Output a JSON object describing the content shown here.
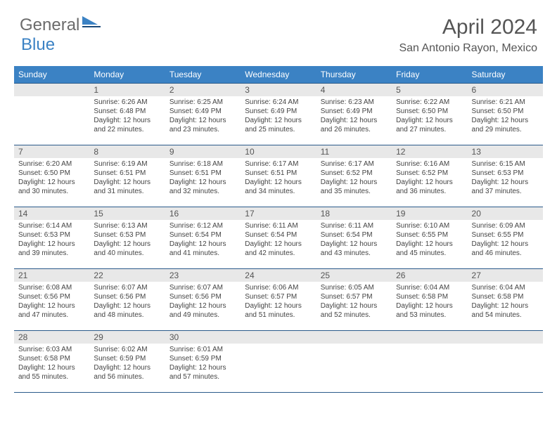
{
  "logo": {
    "part1": "General",
    "part2": "Blue"
  },
  "title": "April 2024",
  "location": "San Antonio Rayon, Mexico",
  "colors": {
    "header_bg": "#3b82c4",
    "row_border": "#2a5a8a",
    "daynum_bg": "#e8e8e8",
    "logo_gray": "#6b6b6b",
    "logo_blue": "#3b82c4"
  },
  "day_labels": [
    "Sunday",
    "Monday",
    "Tuesday",
    "Wednesday",
    "Thursday",
    "Friday",
    "Saturday"
  ],
  "weeks": [
    [
      null,
      {
        "n": "1",
        "sr": "Sunrise: 6:26 AM",
        "ss": "Sunset: 6:48 PM",
        "dl": "Daylight: 12 hours and 22 minutes."
      },
      {
        "n": "2",
        "sr": "Sunrise: 6:25 AM",
        "ss": "Sunset: 6:49 PM",
        "dl": "Daylight: 12 hours and 23 minutes."
      },
      {
        "n": "3",
        "sr": "Sunrise: 6:24 AM",
        "ss": "Sunset: 6:49 PM",
        "dl": "Daylight: 12 hours and 25 minutes."
      },
      {
        "n": "4",
        "sr": "Sunrise: 6:23 AM",
        "ss": "Sunset: 6:49 PM",
        "dl": "Daylight: 12 hours and 26 minutes."
      },
      {
        "n": "5",
        "sr": "Sunrise: 6:22 AM",
        "ss": "Sunset: 6:50 PM",
        "dl": "Daylight: 12 hours and 27 minutes."
      },
      {
        "n": "6",
        "sr": "Sunrise: 6:21 AM",
        "ss": "Sunset: 6:50 PM",
        "dl": "Daylight: 12 hours and 29 minutes."
      }
    ],
    [
      {
        "n": "7",
        "sr": "Sunrise: 6:20 AM",
        "ss": "Sunset: 6:50 PM",
        "dl": "Daylight: 12 hours and 30 minutes."
      },
      {
        "n": "8",
        "sr": "Sunrise: 6:19 AM",
        "ss": "Sunset: 6:51 PM",
        "dl": "Daylight: 12 hours and 31 minutes."
      },
      {
        "n": "9",
        "sr": "Sunrise: 6:18 AM",
        "ss": "Sunset: 6:51 PM",
        "dl": "Daylight: 12 hours and 32 minutes."
      },
      {
        "n": "10",
        "sr": "Sunrise: 6:17 AM",
        "ss": "Sunset: 6:51 PM",
        "dl": "Daylight: 12 hours and 34 minutes."
      },
      {
        "n": "11",
        "sr": "Sunrise: 6:17 AM",
        "ss": "Sunset: 6:52 PM",
        "dl": "Daylight: 12 hours and 35 minutes."
      },
      {
        "n": "12",
        "sr": "Sunrise: 6:16 AM",
        "ss": "Sunset: 6:52 PM",
        "dl": "Daylight: 12 hours and 36 minutes."
      },
      {
        "n": "13",
        "sr": "Sunrise: 6:15 AM",
        "ss": "Sunset: 6:53 PM",
        "dl": "Daylight: 12 hours and 37 minutes."
      }
    ],
    [
      {
        "n": "14",
        "sr": "Sunrise: 6:14 AM",
        "ss": "Sunset: 6:53 PM",
        "dl": "Daylight: 12 hours and 39 minutes."
      },
      {
        "n": "15",
        "sr": "Sunrise: 6:13 AM",
        "ss": "Sunset: 6:53 PM",
        "dl": "Daylight: 12 hours and 40 minutes."
      },
      {
        "n": "16",
        "sr": "Sunrise: 6:12 AM",
        "ss": "Sunset: 6:54 PM",
        "dl": "Daylight: 12 hours and 41 minutes."
      },
      {
        "n": "17",
        "sr": "Sunrise: 6:11 AM",
        "ss": "Sunset: 6:54 PM",
        "dl": "Daylight: 12 hours and 42 minutes."
      },
      {
        "n": "18",
        "sr": "Sunrise: 6:11 AM",
        "ss": "Sunset: 6:54 PM",
        "dl": "Daylight: 12 hours and 43 minutes."
      },
      {
        "n": "19",
        "sr": "Sunrise: 6:10 AM",
        "ss": "Sunset: 6:55 PM",
        "dl": "Daylight: 12 hours and 45 minutes."
      },
      {
        "n": "20",
        "sr": "Sunrise: 6:09 AM",
        "ss": "Sunset: 6:55 PM",
        "dl": "Daylight: 12 hours and 46 minutes."
      }
    ],
    [
      {
        "n": "21",
        "sr": "Sunrise: 6:08 AM",
        "ss": "Sunset: 6:56 PM",
        "dl": "Daylight: 12 hours and 47 minutes."
      },
      {
        "n": "22",
        "sr": "Sunrise: 6:07 AM",
        "ss": "Sunset: 6:56 PM",
        "dl": "Daylight: 12 hours and 48 minutes."
      },
      {
        "n": "23",
        "sr": "Sunrise: 6:07 AM",
        "ss": "Sunset: 6:56 PM",
        "dl": "Daylight: 12 hours and 49 minutes."
      },
      {
        "n": "24",
        "sr": "Sunrise: 6:06 AM",
        "ss": "Sunset: 6:57 PM",
        "dl": "Daylight: 12 hours and 51 minutes."
      },
      {
        "n": "25",
        "sr": "Sunrise: 6:05 AM",
        "ss": "Sunset: 6:57 PM",
        "dl": "Daylight: 12 hours and 52 minutes."
      },
      {
        "n": "26",
        "sr": "Sunrise: 6:04 AM",
        "ss": "Sunset: 6:58 PM",
        "dl": "Daylight: 12 hours and 53 minutes."
      },
      {
        "n": "27",
        "sr": "Sunrise: 6:04 AM",
        "ss": "Sunset: 6:58 PM",
        "dl": "Daylight: 12 hours and 54 minutes."
      }
    ],
    [
      {
        "n": "28",
        "sr": "Sunrise: 6:03 AM",
        "ss": "Sunset: 6:58 PM",
        "dl": "Daylight: 12 hours and 55 minutes."
      },
      {
        "n": "29",
        "sr": "Sunrise: 6:02 AM",
        "ss": "Sunset: 6:59 PM",
        "dl": "Daylight: 12 hours and 56 minutes."
      },
      {
        "n": "30",
        "sr": "Sunrise: 6:01 AM",
        "ss": "Sunset: 6:59 PM",
        "dl": "Daylight: 12 hours and 57 minutes."
      },
      null,
      null,
      null,
      null
    ]
  ]
}
